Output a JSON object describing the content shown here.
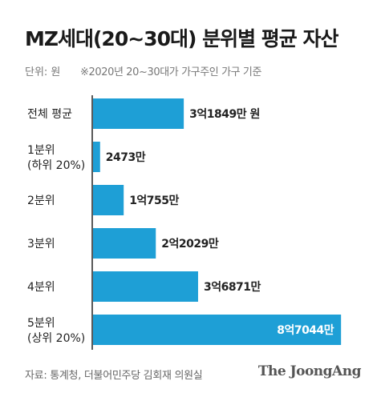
{
  "title": "MZ세대(20~30대) 분위별 평균 자산",
  "unit_label": "단위: 원",
  "note": "※2020년 20~30대가 가구주인 가구 기준",
  "source": "자료: 통계청, 더불어민주당 김회재 의원실",
  "logo_text": "The JoongAng",
  "colors": {
    "bar": "#1e9fd6",
    "axis": "#222222",
    "label": "#222222",
    "value_inside": "#ffffff"
  },
  "chart_data": {
    "type": "bar",
    "orientation": "horizontal",
    "categories": [
      [
        "전체 평균"
      ],
      [
        "1분위",
        "(하위 20%)"
      ],
      [
        "2분위"
      ],
      [
        "3분위"
      ],
      [
        "4분위"
      ],
      [
        "5분위",
        "(상위 20%)"
      ]
    ],
    "values": [
      318490000,
      24730000,
      107550000,
      220290000,
      368710000,
      870440000
    ],
    "value_labels": [
      "3억1849만 원",
      "2473만",
      "1억755만",
      "2억2029만",
      "3억6871만",
      "8억7044만"
    ],
    "xlim": [
      0,
      900000000
    ],
    "grid": false,
    "legend": "none"
  }
}
